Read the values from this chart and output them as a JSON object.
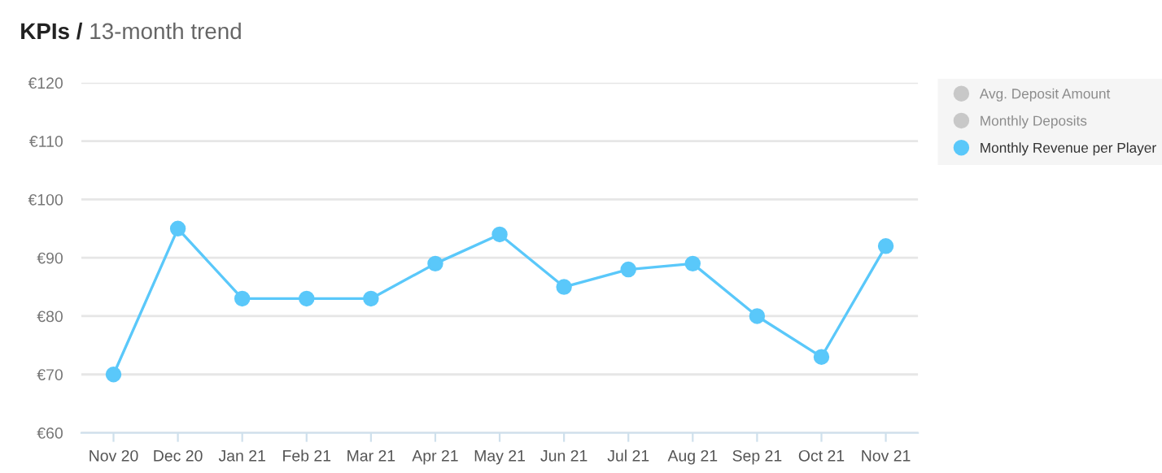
{
  "chart_data": {
    "type": "line",
    "title": "KPIs /",
    "subtitle": "13-month trend",
    "categories": [
      "Nov 20",
      "Dec 20",
      "Jan 21",
      "Feb 21",
      "Mar 21",
      "Apr 21",
      "May 21",
      "Jun 21",
      "Jul 21",
      "Aug 21",
      "Sep 21",
      "Oct 21",
      "Nov 21"
    ],
    "series": [
      {
        "name": "Avg. Deposit Amount",
        "color": "#c8c8c8",
        "values": [
          null,
          null,
          null,
          null,
          null,
          null,
          null,
          null,
          null,
          null,
          null,
          null,
          null
        ]
      },
      {
        "name": "Monthly Deposits",
        "color": "#c8c8c8",
        "values": [
          null,
          null,
          null,
          null,
          null,
          null,
          null,
          null,
          null,
          null,
          null,
          null,
          null
        ]
      },
      {
        "name": "Monthly Revenue per Player",
        "color": "#5ac8fa",
        "values": [
          70,
          95,
          83,
          83,
          83,
          89,
          94,
          85,
          88,
          89,
          80,
          73,
          92
        ]
      }
    ],
    "ylim": [
      60,
      120
    ],
    "yticks": [
      {
        "value": 60,
        "label": "€60"
      },
      {
        "value": 70,
        "label": "€70"
      },
      {
        "value": 80,
        "label": "€80"
      },
      {
        "value": 90,
        "label": "€90"
      },
      {
        "value": 100,
        "label": "€100"
      },
      {
        "value": 110,
        "label": "€110"
      },
      {
        "value": 120,
        "label": "€120"
      }
    ],
    "grid": "y",
    "legend": "right",
    "marker": "circle",
    "line_style": "solid"
  }
}
